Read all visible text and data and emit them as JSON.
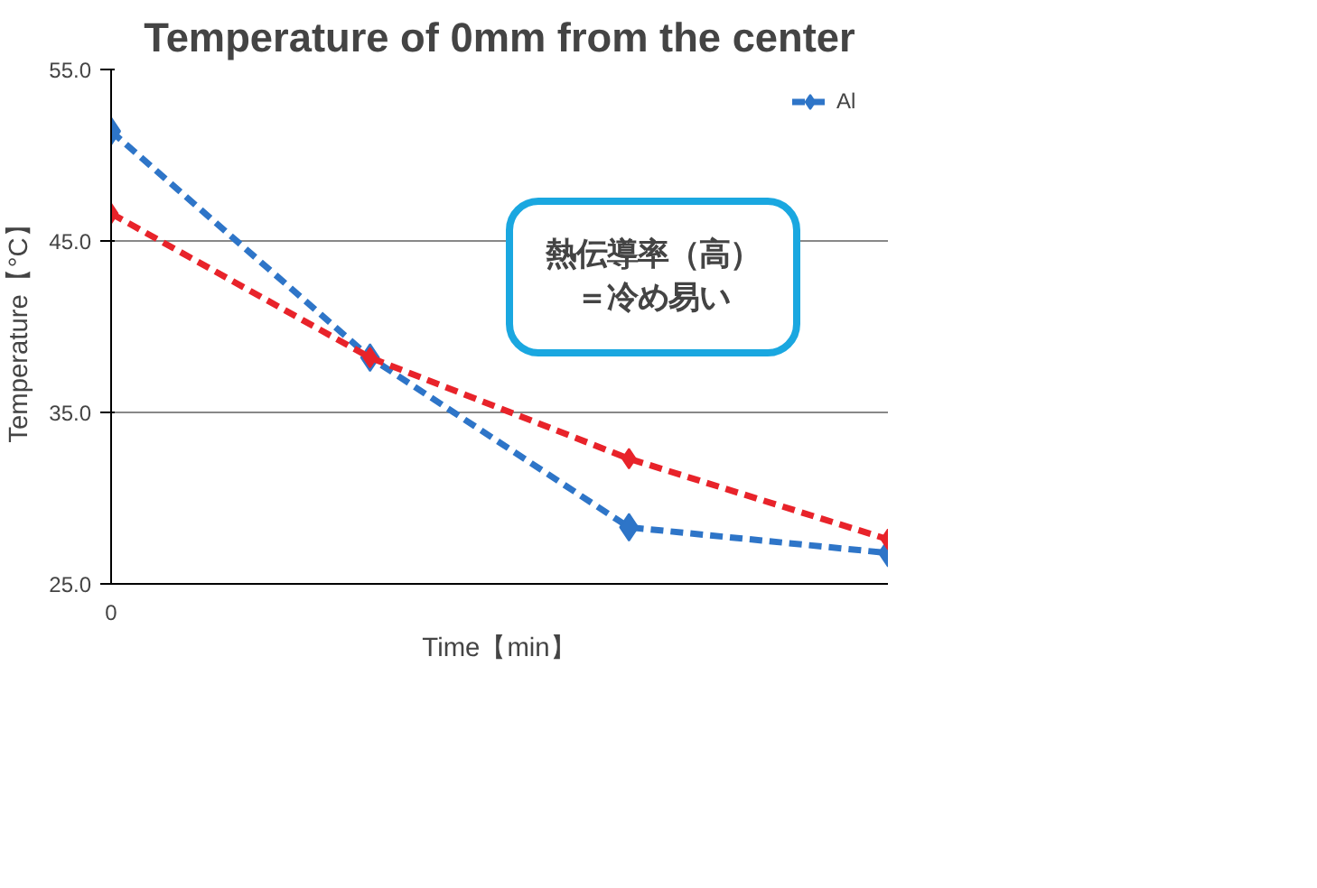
{
  "chart_data": {
    "type": "line",
    "title": "Temperature of 0mm from the center",
    "xlabel": "Time【min】",
    "ylabel": "Temperature【°C】",
    "categories": [
      "0",
      null,
      null,
      null
    ],
    "series": [
      {
        "name": "Al",
        "color": "#2e75c8",
        "values": [
          51.4,
          38.2,
          28.3,
          26.8
        ]
      },
      {
        "color": "#e8232a",
        "values": [
          46.6,
          38.2,
          32.3,
          27.6
        ]
      }
    ],
    "ylim": [
      25,
      55
    ],
    "yticks": [
      {
        "value": 25,
        "label": "25.0"
      },
      {
        "value": 35,
        "label": "35.0"
      },
      {
        "value": 45,
        "label": "45.0"
      },
      {
        "value": 55,
        "label": "55.0"
      }
    ],
    "grid": "y",
    "legend": "top right",
    "marker": "diamond",
    "line_style": "dashed",
    "annotations": [
      "熱伝導率（高）",
      "＝冷め易い"
    ]
  }
}
